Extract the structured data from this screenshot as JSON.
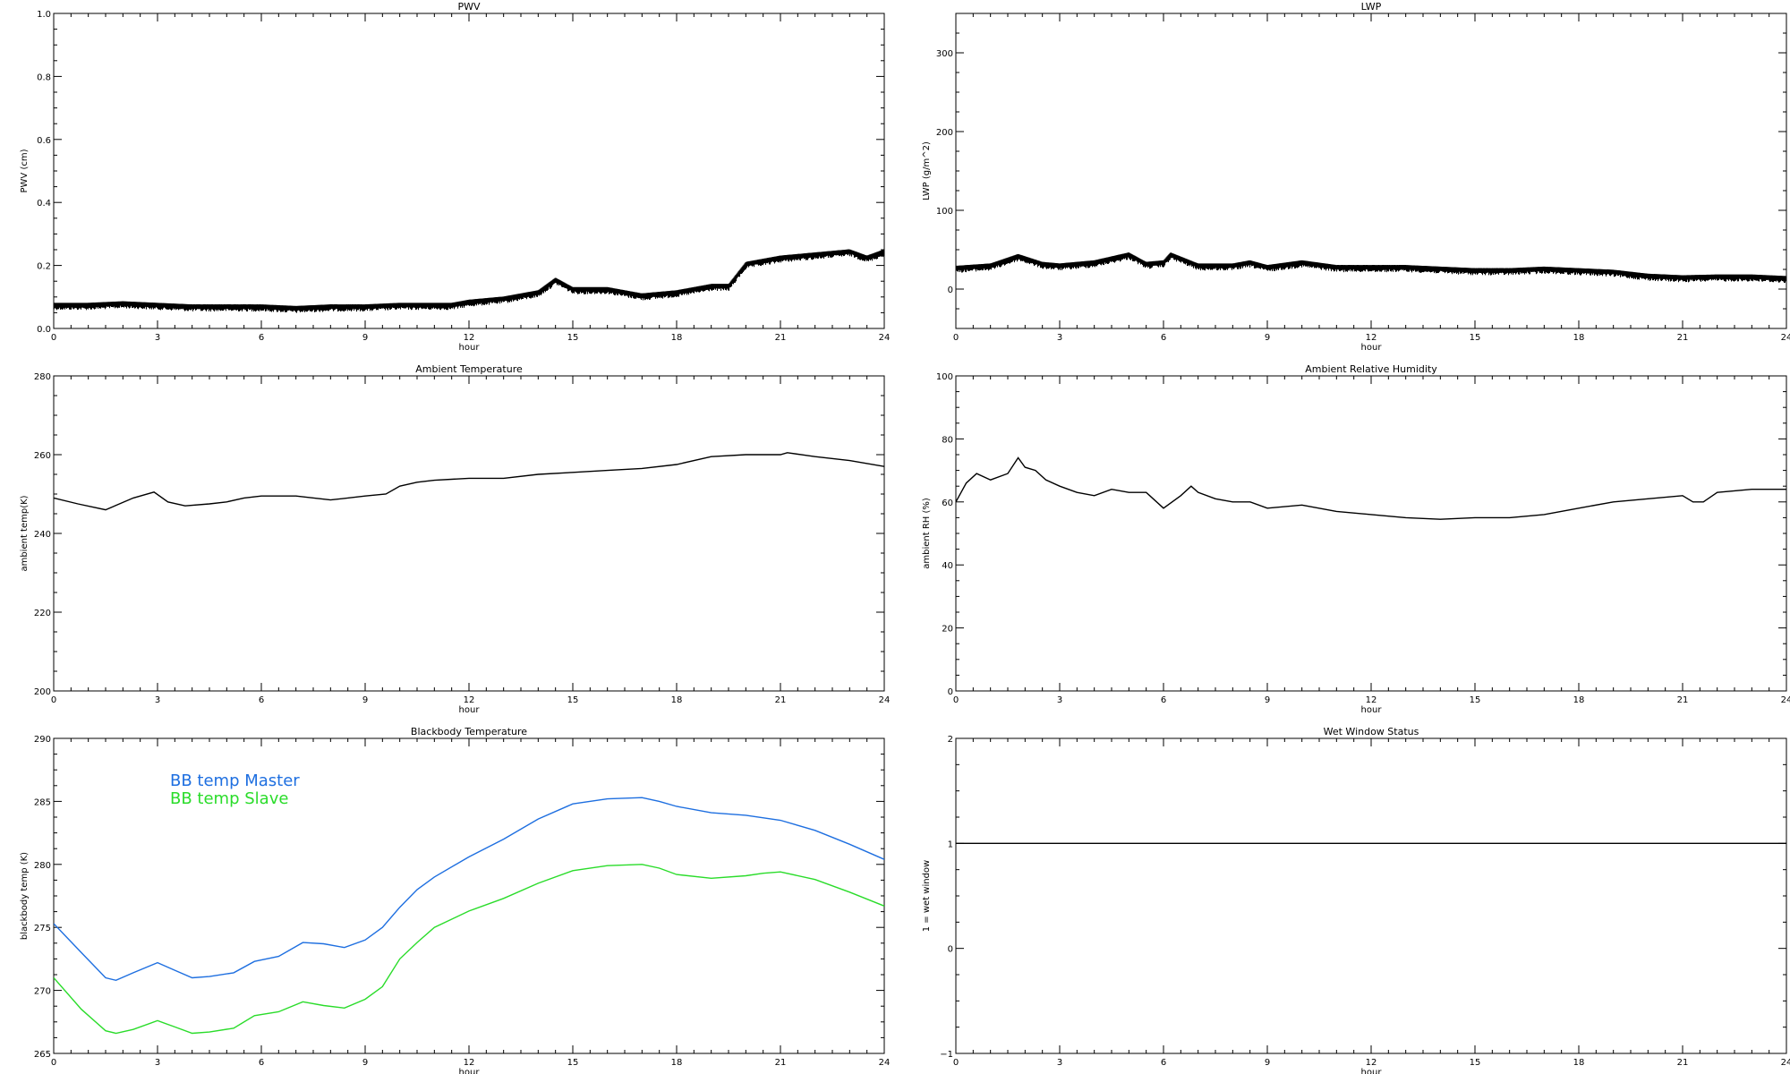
{
  "chart_data": [
    {
      "type": "line",
      "title": "PWV",
      "xlabel": "hour",
      "ylabel": "PWV (cm)",
      "xlim": [
        0,
        24
      ],
      "ylim": [
        0.0,
        1.0
      ],
      "xticks": [
        0,
        3,
        6,
        9,
        12,
        15,
        18,
        21,
        24
      ],
      "yticks": [
        0.0,
        0.2,
        0.4,
        0.6,
        0.8,
        1.0
      ],
      "ytick_labels": [
        "0.0",
        "0.2",
        "0.4",
        "0.6",
        "0.8",
        "1.0"
      ],
      "noisy": true,
      "series": [
        {
          "color": "#000000",
          "x": [
            0,
            1,
            2,
            3,
            4,
            5,
            6,
            7,
            8,
            9,
            10,
            11,
            11.5,
            12,
            13,
            14,
            14.5,
            15,
            16,
            17,
            18,
            19,
            19.5,
            20,
            21,
            22,
            23,
            23.5,
            24
          ],
          "y": [
            0.07,
            0.07,
            0.075,
            0.07,
            0.065,
            0.065,
            0.065,
            0.06,
            0.065,
            0.065,
            0.07,
            0.07,
            0.07,
            0.08,
            0.09,
            0.11,
            0.15,
            0.12,
            0.12,
            0.1,
            0.11,
            0.13,
            0.13,
            0.2,
            0.22,
            0.23,
            0.24,
            0.22,
            0.24
          ]
        }
      ]
    },
    {
      "type": "line",
      "title": "LWP",
      "xlabel": "hour",
      "ylabel": "LWP (g/m^2)",
      "xlim": [
        0,
        24
      ],
      "ylim": [
        -50,
        350
      ],
      "xticks": [
        0,
        3,
        6,
        9,
        12,
        15,
        18,
        21,
        24
      ],
      "yticks": [
        0,
        100,
        200,
        300
      ],
      "ytick_labels": [
        "0",
        "100",
        "200",
        "300"
      ],
      "noisy": true,
      "series": [
        {
          "color": "#000000",
          "x": [
            0,
            1,
            1.8,
            2.5,
            3,
            4,
            5,
            5.5,
            6,
            6.2,
            7,
            8,
            8.5,
            9,
            10,
            11,
            12,
            13,
            14,
            15,
            16,
            17,
            18,
            19,
            20,
            21,
            22,
            23,
            24
          ],
          "y": [
            25,
            28,
            40,
            30,
            28,
            32,
            42,
            30,
            32,
            42,
            28,
            28,
            32,
            26,
            32,
            26,
            26,
            26,
            24,
            22,
            22,
            24,
            22,
            20,
            15,
            13,
            14,
            14,
            12
          ]
        }
      ]
    },
    {
      "type": "line",
      "title": "Ambient Temperature",
      "xlabel": "hour",
      "ylabel": "ambient temp(K)",
      "xlim": [
        0,
        24
      ],
      "ylim": [
        200,
        280
      ],
      "xticks": [
        0,
        3,
        6,
        9,
        12,
        15,
        18,
        21,
        24
      ],
      "yticks": [
        200,
        220,
        240,
        260,
        280
      ],
      "ytick_labels": [
        "200",
        "220",
        "240",
        "260",
        "280"
      ],
      "noisy": false,
      "series": [
        {
          "color": "#000000",
          "x": [
            0,
            0.7,
            1.5,
            2.3,
            2.9,
            3.3,
            3.8,
            4.5,
            5,
            5.5,
            6,
            7,
            8,
            9,
            9.6,
            10,
            10.5,
            11,
            12,
            13,
            14,
            15,
            16,
            17,
            18,
            19,
            20,
            21,
            21.2,
            22,
            23,
            24
          ],
          "y": [
            249,
            247.5,
            246,
            249,
            250.5,
            248,
            247,
            247.5,
            248,
            249,
            249.5,
            249.5,
            248.5,
            249.5,
            250,
            252,
            253,
            253.5,
            254,
            254,
            255,
            255.5,
            256,
            256.5,
            257.5,
            259.5,
            260,
            260,
            260.5,
            259.5,
            258.5,
            257
          ]
        }
      ]
    },
    {
      "type": "line",
      "title": "Ambient Relative Humidity",
      "xlabel": "hour",
      "ylabel": "ambient RH (%)",
      "xlim": [
        0,
        24
      ],
      "ylim": [
        0,
        100
      ],
      "xticks": [
        0,
        3,
        6,
        9,
        12,
        15,
        18,
        21,
        24
      ],
      "yticks": [
        0,
        20,
        40,
        60,
        80,
        100
      ],
      "ytick_labels": [
        "0",
        "20",
        "40",
        "60",
        "80",
        "100"
      ],
      "noisy": false,
      "series": [
        {
          "color": "#000000",
          "x": [
            0,
            0.3,
            0.6,
            1,
            1.5,
            1.8,
            2,
            2.3,
            2.6,
            3,
            3.5,
            4,
            4.5,
            5,
            5.5,
            6,
            6.5,
            6.8,
            7,
            7.5,
            8,
            8.5,
            9,
            10,
            11,
            12,
            13,
            14,
            15,
            16,
            17,
            18,
            19,
            20,
            21,
            21.3,
            21.6,
            22,
            23,
            24
          ],
          "y": [
            60,
            66,
            69,
            67,
            69,
            74,
            71,
            70,
            67,
            65,
            63,
            62,
            64,
            63,
            63,
            58,
            62,
            65,
            63,
            61,
            60,
            60,
            58,
            59,
            57,
            56,
            55,
            54.5,
            55,
            55,
            56,
            58,
            60,
            61,
            62,
            60,
            60,
            63,
            64,
            64
          ]
        }
      ]
    },
    {
      "type": "line",
      "title": "Blackbody Temperature",
      "xlabel": "hour",
      "ylabel": "blackbody temp (K)",
      "xlim": [
        0,
        24
      ],
      "ylim": [
        265,
        290
      ],
      "xticks": [
        0,
        3,
        6,
        9,
        12,
        15,
        18,
        21,
        24
      ],
      "yticks": [
        265,
        270,
        275,
        280,
        285,
        290
      ],
      "ytick_labels": [
        "265",
        "270",
        "275",
        "280",
        "285",
        "290"
      ],
      "noisy": false,
      "legend": {
        "placement": "top-left"
      },
      "series": [
        {
          "name": "BB temp Master",
          "color": "#1e6fe0",
          "x": [
            0,
            0.8,
            1.5,
            1.8,
            2.3,
            3,
            3.5,
            4,
            4.5,
            5.2,
            5.8,
            6.5,
            7.2,
            7.8,
            8.4,
            9,
            9.5,
            10,
            10.5,
            11,
            12,
            13,
            14,
            15,
            16,
            17,
            17.5,
            18,
            19,
            20,
            21,
            22,
            23,
            24
          ],
          "y": [
            275.3,
            273,
            271,
            270.8,
            271.4,
            272.2,
            271.6,
            271,
            271.1,
            271.4,
            272.3,
            272.7,
            273.8,
            273.7,
            273.4,
            274,
            275,
            276.6,
            278,
            279,
            280.6,
            282,
            283.6,
            284.8,
            285.2,
            285.3,
            285,
            284.6,
            284.1,
            283.9,
            283.5,
            282.7,
            281.6,
            280.4
          ]
        },
        {
          "name": "BB temp Slave",
          "color": "#2adc2a",
          "x": [
            0,
            0.8,
            1.5,
            1.8,
            2.3,
            3,
            3.5,
            4,
            4.5,
            5.2,
            5.8,
            6.5,
            7.2,
            7.8,
            8.4,
            9,
            9.5,
            10,
            10.5,
            11,
            12,
            13,
            14,
            15,
            16,
            17,
            17.5,
            18,
            19,
            20,
            20.5,
            21,
            22,
            23,
            24
          ],
          "y": [
            271,
            268.5,
            266.8,
            266.6,
            266.9,
            267.6,
            267.1,
            266.6,
            266.7,
            267,
            268,
            268.3,
            269.1,
            268.8,
            268.6,
            269.3,
            270.3,
            272.5,
            273.8,
            275,
            276.3,
            277.3,
            278.5,
            279.5,
            279.9,
            280,
            279.7,
            279.2,
            278.9,
            279.1,
            279.3,
            279.4,
            278.8,
            277.8,
            276.7
          ]
        }
      ]
    },
    {
      "type": "line",
      "title": "Wet Window Status",
      "xlabel": "hour",
      "ylabel": "1 = wet window",
      "xlim": [
        0,
        24
      ],
      "ylim": [
        -1,
        2
      ],
      "xticks": [
        0,
        3,
        6,
        9,
        12,
        15,
        18,
        21,
        24
      ],
      "yticks": [
        -1,
        0,
        1,
        2
      ],
      "ytick_labels": [
        "−1",
        "0",
        "1",
        "2"
      ],
      "noisy": false,
      "series": [
        {
          "color": "#000000",
          "x": [
            0,
            24
          ],
          "y": [
            1,
            1
          ]
        }
      ]
    }
  ]
}
